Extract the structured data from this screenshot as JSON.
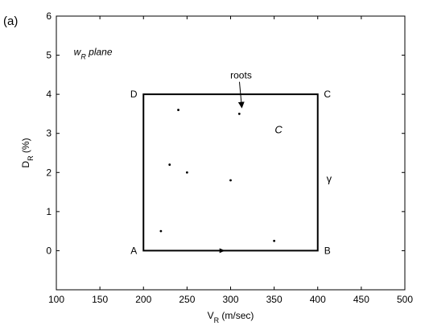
{
  "panel_label": "(a)",
  "chart_data": {
    "type": "scatter",
    "xlabel_main": "V",
    "xlabel_sub": "R",
    "xlabel_rest": " (m/sec)",
    "ylabel_main": "D",
    "ylabel_sub": "R",
    "ylabel_rest": " (%)",
    "xlim": [
      100,
      500
    ],
    "ylim": [
      -1,
      6
    ],
    "xticks": [
      100,
      150,
      200,
      250,
      300,
      350,
      400,
      450,
      500
    ],
    "yticks": [
      0,
      1,
      2,
      3,
      4,
      5,
      6
    ],
    "grid": false,
    "plane_label_main": "w",
    "plane_label_sub": "R",
    "plane_label_rest": " plane",
    "points": [
      {
        "x": 220,
        "y": 0.5
      },
      {
        "x": 230,
        "y": 2.2
      },
      {
        "x": 240,
        "y": 3.6
      },
      {
        "x": 250,
        "y": 2.0
      },
      {
        "x": 300,
        "y": 1.8
      },
      {
        "x": 310,
        "y": 3.5
      },
      {
        "x": 350,
        "y": 0.25
      }
    ],
    "contour": {
      "corners": [
        {
          "label": "A",
          "x": 200,
          "y": 0
        },
        {
          "label": "B",
          "x": 400,
          "y": 0
        },
        {
          "label": "C",
          "x": 400,
          "y": 4
        },
        {
          "label": "D",
          "x": 200,
          "y": 4
        }
      ],
      "arrow_at": {
        "x": 290,
        "y": 0
      },
      "contour_name": "C",
      "contour_name_pos": {
        "x": 355,
        "y": 3.0
      },
      "side_label": "γ",
      "side_label_pos": {
        "x": 413,
        "y": 1.75
      }
    },
    "annotation": {
      "text": "roots",
      "text_pos": {
        "x": 312,
        "y": 4.4
      },
      "arrow_to": {
        "x": 310,
        "y": 3.6
      }
    }
  }
}
